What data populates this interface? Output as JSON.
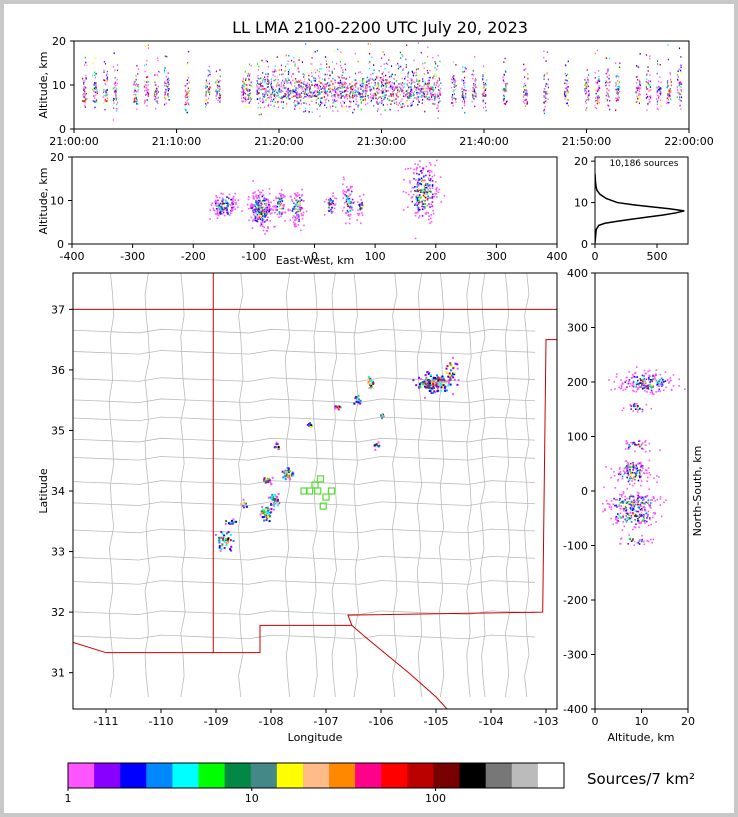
{
  "chart_data": [
    {
      "id": "time_height",
      "type": "scatter",
      "title": "LL LMA 2100-2200 UTC July 20, 2023",
      "ylabel": "Altitude, km",
      "ylim": [
        0,
        20
      ],
      "yticks": [
        0,
        10,
        20
      ],
      "xlim": [
        "21:00:00",
        "22:00:00"
      ],
      "xticks": [
        "21:00:00",
        "21:10:00",
        "21:20:00",
        "21:30:00",
        "21:40:00",
        "21:50:00",
        "22:00:00"
      ],
      "bursts_minutes": [
        1,
        2,
        3,
        4,
        6,
        7,
        8,
        9,
        11,
        13,
        14,
        16.5,
        17,
        18,
        18.5,
        19,
        19.5,
        20,
        20.5,
        21,
        21.5,
        22,
        22.5,
        23,
        23.5,
        24,
        24.5,
        25,
        25.5,
        26,
        26.5,
        27,
        27.5,
        28,
        28.5,
        29,
        29.5,
        30,
        30.5,
        31,
        31.5,
        32,
        32.5,
        33,
        33.5,
        34,
        34.5,
        35,
        35.5,
        37,
        38,
        39,
        40,
        42,
        44,
        46,
        48,
        50,
        51,
        52,
        53,
        55,
        56,
        57,
        58,
        59
      ]
    },
    {
      "id": "ew_height",
      "type": "scatter",
      "xlabel": "East-West, km",
      "ylabel": "Altitude, km",
      "xlim": [
        -400,
        400
      ],
      "ylim": [
        0,
        20
      ],
      "xticks": [
        -400,
        -300,
        -200,
        -100,
        0,
        100,
        200,
        300,
        400
      ],
      "yticks": [
        0,
        10,
        20
      ],
      "clusters": [
        {
          "x": -150,
          "y": 9,
          "sx": 10,
          "sy": 1.5,
          "n": 130
        },
        {
          "x": -90,
          "y": 8,
          "sx": 10,
          "sy": 2.2,
          "n": 220
        },
        {
          "x": -58,
          "y": 9,
          "sx": 4,
          "sy": 1.5,
          "n": 60
        },
        {
          "x": -30,
          "y": 8.5,
          "sx": 6,
          "sy": 2,
          "n": 100
        },
        {
          "x": 25,
          "y": 9,
          "sx": 4,
          "sy": 1.2,
          "n": 40
        },
        {
          "x": 55,
          "y": 10,
          "sx": 5,
          "sy": 2,
          "n": 70
        },
        {
          "x": 75,
          "y": 9,
          "sx": 3,
          "sy": 1.2,
          "n": 30
        },
        {
          "x": 178,
          "y": 12,
          "sx": 12,
          "sy": 3.5,
          "n": 240
        }
      ]
    },
    {
      "id": "alt_hist",
      "type": "line",
      "annotation": "10,186 sources",
      "xlim": [
        0,
        750
      ],
      "ylim": [
        0,
        21
      ],
      "xticks": [
        0,
        500
      ],
      "yticks": [
        0,
        10,
        20
      ],
      "points": [
        [
          0,
          0.3
        ],
        [
          5,
          2
        ],
        [
          10,
          3.5
        ],
        [
          30,
          4.5
        ],
        [
          80,
          5
        ],
        [
          180,
          5.5
        ],
        [
          300,
          6
        ],
        [
          420,
          6.5
        ],
        [
          550,
          7
        ],
        [
          650,
          7.5
        ],
        [
          720,
          8
        ],
        [
          600,
          8.5
        ],
        [
          450,
          9
        ],
        [
          300,
          9.5
        ],
        [
          180,
          10
        ],
        [
          90,
          11
        ],
        [
          40,
          12
        ],
        [
          15,
          13
        ],
        [
          8,
          14
        ],
        [
          4,
          15
        ],
        [
          2,
          16
        ],
        [
          0,
          17
        ]
      ]
    },
    {
      "id": "plan_view",
      "type": "scatter",
      "xlabel": "Longitude",
      "ylabel": "Latitude",
      "xlim": [
        -111.6,
        -102.8
      ],
      "ylim": [
        30.4,
        37.6
      ],
      "xticks": [
        -111,
        -110,
        -109,
        -108,
        -107,
        -106,
        -105,
        -104,
        -103
      ],
      "yticks": [
        31,
        32,
        33,
        34,
        35,
        36,
        37
      ],
      "stations": [
        [
          -107.1,
          34.2
        ],
        [
          -107.2,
          34.1
        ],
        [
          -107.3,
          34.0
        ],
        [
          -106.9,
          34.0
        ],
        [
          -107.0,
          33.9
        ],
        [
          -107.15,
          34.0
        ],
        [
          -107.05,
          33.75
        ],
        [
          -107.4,
          34.0
        ]
      ],
      "clusters": [
        {
          "lon": -105.05,
          "lat": 35.8,
          "sx": 0.25,
          "sy": 0.12,
          "n": 160
        },
        {
          "lon": -104.75,
          "lat": 36.0,
          "sx": 0.1,
          "sy": 0.15,
          "n": 30
        },
        {
          "lon": -106.2,
          "lat": 35.8,
          "sx": 0.05,
          "sy": 0.1,
          "n": 20
        },
        {
          "lon": -106.45,
          "lat": 35.5,
          "sx": 0.06,
          "sy": 0.08,
          "n": 15
        },
        {
          "lon": -106.8,
          "lat": 35.4,
          "sx": 0.05,
          "sy": 0.05,
          "n": 10
        },
        {
          "lon": -107.3,
          "lat": 35.1,
          "sx": 0.04,
          "sy": 0.04,
          "n": 8
        },
        {
          "lon": -107.7,
          "lat": 34.3,
          "sx": 0.08,
          "sy": 0.08,
          "n": 40
        },
        {
          "lon": -107.9,
          "lat": 34.75,
          "sx": 0.05,
          "sy": 0.05,
          "n": 10
        },
        {
          "lon": -108.1,
          "lat": 34.2,
          "sx": 0.08,
          "sy": 0.05,
          "n": 25
        },
        {
          "lon": -107.95,
          "lat": 33.85,
          "sx": 0.08,
          "sy": 0.08,
          "n": 40
        },
        {
          "lon": -108.1,
          "lat": 33.65,
          "sx": 0.08,
          "sy": 0.1,
          "n": 40
        },
        {
          "lon": -108.5,
          "lat": 33.8,
          "sx": 0.08,
          "sy": 0.05,
          "n": 10
        },
        {
          "lon": -108.75,
          "lat": 33.5,
          "sx": 0.08,
          "sy": 0.05,
          "n": 15
        },
        {
          "lon": -108.85,
          "lat": 33.2,
          "sx": 0.12,
          "sy": 0.12,
          "n": 40
        },
        {
          "lon": -106.1,
          "lat": 34.75,
          "sx": 0.05,
          "sy": 0.05,
          "n": 10
        },
        {
          "lon": -106.0,
          "lat": 35.25,
          "sx": 0.03,
          "sy": 0.05,
          "n": 8
        }
      ]
    },
    {
      "id": "ns_height",
      "type": "scatter",
      "xlabel": "Altitude, km",
      "ylabel": "North-South, km",
      "xlim": [
        0,
        20
      ],
      "ylim": [
        -400,
        400
      ],
      "xticks": [
        0,
        10,
        20
      ],
      "yticks": [
        -400,
        -300,
        -200,
        -100,
        0,
        100,
        200,
        300,
        400
      ],
      "clusters": [
        {
          "alt": 11,
          "ns": 200,
          "sa": 3,
          "sn": 10,
          "n": 200
        },
        {
          "alt": 9,
          "ns": 155,
          "sa": 1.2,
          "sn": 5,
          "n": 25
        },
        {
          "alt": 9,
          "ns": 85,
          "sa": 1.5,
          "sn": 5,
          "n": 40
        },
        {
          "alt": 8,
          "ns": 45,
          "sa": 1.5,
          "sn": 6,
          "n": 50
        },
        {
          "alt": 8,
          "ns": 30,
          "sa": 2,
          "sn": 8,
          "n": 80
        },
        {
          "alt": 8,
          "ns": -20,
          "sa": 3,
          "sn": 10,
          "n": 150
        },
        {
          "alt": 8,
          "ns": -45,
          "sa": 2.5,
          "sn": 10,
          "n": 120
        },
        {
          "alt": 8.5,
          "ns": -90,
          "sa": 1.5,
          "sn": 5,
          "n": 30
        }
      ]
    },
    {
      "id": "colorbar",
      "type": "heatmap",
      "label": "Sources/7 km²",
      "tick_labels": [
        "1",
        "10",
        "100"
      ],
      "tick_values": [
        1,
        10,
        100
      ],
      "range": [
        1,
        500
      ],
      "colors": [
        "#ff55ff",
        "#8800ff",
        "#0000ff",
        "#0088ff",
        "#00ffff",
        "#00ff00",
        "#008844",
        "#448888",
        "#ffff00",
        "#ffbb88",
        "#ff8800",
        "#ff0088",
        "#ff0000",
        "#bb0000",
        "#770000",
        "#000000",
        "#777777",
        "#bbbbbb",
        "#ffffff"
      ]
    }
  ]
}
